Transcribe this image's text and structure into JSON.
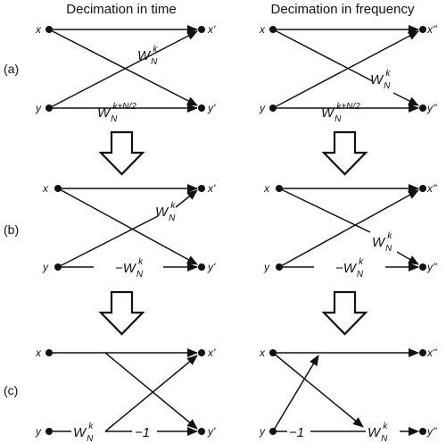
{
  "headers": {
    "left": "Decimation in time",
    "right": "Decimation in frequency"
  },
  "rows": [
    {
      "label": "(a)"
    },
    {
      "label": "(b)"
    },
    {
      "label": "(c)"
    }
  ],
  "inputs": {
    "x": "x",
    "y": "y"
  },
  "outputs": {
    "time_x": "x'",
    "time_y": "y'",
    "freq_x": "x''",
    "freq_y": "y''"
  },
  "twiddle": {
    "base": "W",
    "sub": "N",
    "exp_k": "k",
    "exp_k_half": "k+N/2",
    "neg_base": "−W"
  },
  "minus_one": "−1"
}
